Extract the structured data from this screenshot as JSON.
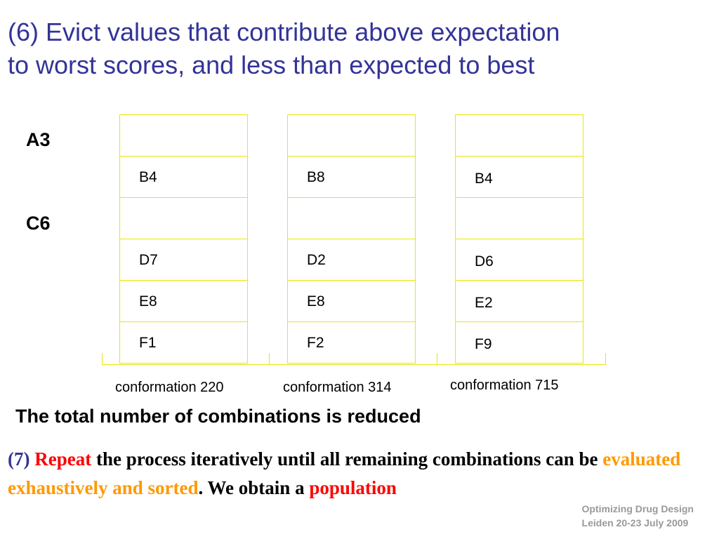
{
  "title": {
    "line1": "(6) Evict values that contribute above expectation",
    "line2": "to worst scores, and  less than expected to best"
  },
  "row_labels": [
    "A3",
    "C6"
  ],
  "conformations": [
    {
      "caption": "conformation 220",
      "cells": [
        "",
        "B4",
        "",
        "D7",
        "E8",
        "F1"
      ]
    },
    {
      "caption": "conformation 314",
      "cells": [
        "",
        "B8",
        "",
        "D2",
        "E8",
        "F2"
      ]
    },
    {
      "caption": "conformation 715",
      "cells": [
        "",
        "B4",
        "",
        "D6",
        "E2",
        "F9"
      ]
    }
  ],
  "reduced_text": "The total number of combinations is reduced",
  "step7": {
    "num": "(7)",
    "repeat": "Repeat",
    "part1": "the process iteratively until all remaining combinations can be",
    "exhaustive": "evaluated exhaustively and sorted",
    "part2": ". We obtain a",
    "population": "population"
  },
  "footer": {
    "line1": "Optimizing Drug Design",
    "line2": "Leiden 20-23 July 2009"
  }
}
